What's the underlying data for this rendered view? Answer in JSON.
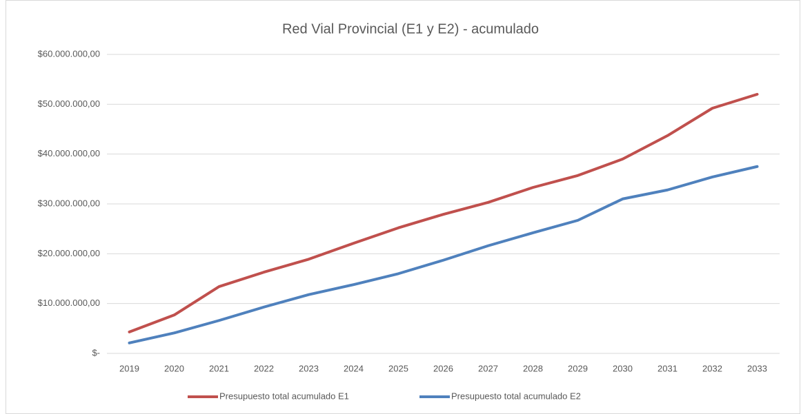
{
  "chart_data": {
    "type": "line",
    "title": "Red Vial Provincial (E1 y E2) - acumulado",
    "categories": [
      "2019",
      "2020",
      "2021",
      "2022",
      "2023",
      "2024",
      "2025",
      "2026",
      "2027",
      "2028",
      "2029",
      "2030",
      "2031",
      "2032",
      "2033"
    ],
    "series": [
      {
        "name": "Presupuesto total acumulado E1",
        "color": "#c0504d",
        "values": [
          4300000,
          7700000,
          13400000,
          16300000,
          18900000,
          22100000,
          25200000,
          27900000,
          30300000,
          33300000,
          35700000,
          39000000,
          43700000,
          49200000,
          52000000
        ]
      },
      {
        "name": "Presupuesto total acumulado E2",
        "color": "#4f81bd",
        "values": [
          2100000,
          4100000,
          6600000,
          9300000,
          11800000,
          13800000,
          16000000,
          18700000,
          21600000,
          24200000,
          26700000,
          31000000,
          32800000,
          35400000,
          37500000
        ]
      }
    ],
    "ylim": [
      0,
      60000000
    ],
    "yticks": [
      {
        "value": 0,
        "label": "$-"
      },
      {
        "value": 10000000,
        "label": "$10.000.000,00"
      },
      {
        "value": 20000000,
        "label": "$20.000.000,00"
      },
      {
        "value": 30000000,
        "label": "$30.000.000,00"
      },
      {
        "value": 40000000,
        "label": "$40.000.000,00"
      },
      {
        "value": 50000000,
        "label": "$50.000.000,00"
      },
      {
        "value": 60000000,
        "label": "$60.000.000,00"
      }
    ],
    "grid": true,
    "legend": "bottom"
  }
}
